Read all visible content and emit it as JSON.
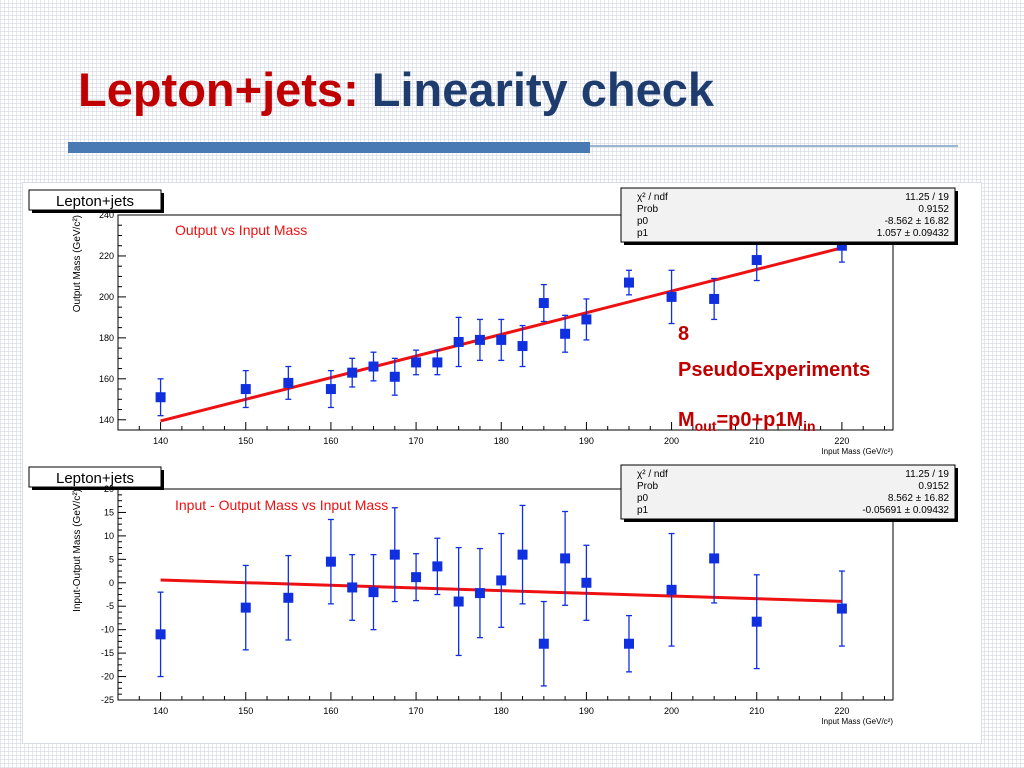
{
  "slide": {
    "title_part1": "Lepton+jets:",
    "title_part2": "Linearity check",
    "title_colors": {
      "part1": "#c00000",
      "part2": "#1f3c6e"
    },
    "rule_color": "#4a7ab4"
  },
  "annotation": {
    "count": "8",
    "label": "PseudoExperiments",
    "formula": {
      "m": "M",
      "out": "out",
      "eq": "=p0+p1M",
      "in": "in"
    },
    "color": "#c00000"
  },
  "chart_data": [
    {
      "type": "scatter",
      "canvas_label": "Lepton+jets",
      "title": "Output vs Input Mass",
      "xlabel": "Input Mass (GeV/c²)",
      "ylabel": "Output Mass (GeV/c²)",
      "xlim": [
        135,
        226
      ],
      "ylim": [
        135,
        240
      ],
      "xticks": [
        140,
        150,
        160,
        170,
        180,
        190,
        200,
        210,
        220
      ],
      "yticks": [
        140,
        160,
        180,
        200,
        220,
        240
      ],
      "series": [
        {
          "marker": "square",
          "color": "#1030e0",
          "x": [
            140,
            150,
            155,
            160,
            162.5,
            165,
            167.5,
            170,
            172.5,
            175,
            177.5,
            180,
            182.5,
            185,
            187.5,
            190,
            195,
            200,
            205,
            210,
            220
          ],
          "y": [
            151,
            155,
            158,
            155,
            163,
            166,
            161,
            168,
            168,
            178,
            179,
            179,
            176,
            197,
            182,
            189,
            207,
            200,
            199,
            218,
            225
          ],
          "yerr": [
            9,
            9,
            8,
            9,
            7,
            7,
            9,
            6,
            6,
            12,
            10,
            10,
            10,
            9,
            9,
            10,
            6,
            13,
            10,
            10,
            8
          ]
        }
      ],
      "fit": {
        "color": "#ee1111",
        "x": [
          140,
          220
        ],
        "stats": [
          {
            "name": "χ² / ndf",
            "value": "11.25 / 19"
          },
          {
            "name": "Prob",
            "value": "0.9152"
          },
          {
            "name": "p0",
            "value": "-8.562 ± 16.82"
          },
          {
            "name": "p1",
            "value": "1.057 ± 0.09432"
          }
        ],
        "p0": -8.562,
        "p1": 1.057
      },
      "grid": false
    },
    {
      "type": "scatter",
      "canvas_label": "Lepton+jets",
      "title": "Input - Output Mass vs Input Mass",
      "xlabel": "Input Mass (GeV/c²)",
      "ylabel": "Input-Output Mass (GeV/c²)",
      "xlim": [
        135,
        226
      ],
      "ylim": [
        -25,
        20
      ],
      "xticks": [
        140,
        150,
        160,
        170,
        180,
        190,
        200,
        210,
        220
      ],
      "yticks": [
        -25,
        -20,
        -15,
        -10,
        -5,
        0,
        5,
        10,
        15,
        20
      ],
      "series": [
        {
          "marker": "square",
          "color": "#1030e0",
          "x": [
            140,
            150,
            155,
            160,
            162.5,
            165,
            167.5,
            170,
            172.5,
            175,
            177.5,
            180,
            182.5,
            185,
            187.5,
            190,
            195,
            200,
            205,
            210,
            220
          ],
          "y": [
            -11,
            -5.3,
            -3.2,
            4.5,
            -1,
            -2,
            6,
            1.2,
            3.5,
            -4,
            -2.2,
            0.5,
            6,
            -13,
            5.2,
            0,
            -13,
            -1.5,
            5.2,
            -8.3,
            -5.5
          ],
          "yerr": [
            9,
            9,
            9,
            9,
            7,
            8,
            10,
            5,
            6,
            11.5,
            9.5,
            10,
            10.5,
            9,
            10,
            8,
            6,
            12,
            9.5,
            10,
            8
          ]
        }
      ],
      "fit": {
        "color": "#ee1111",
        "x": [
          140,
          220
        ],
        "stats": [
          {
            "name": "χ² / ndf",
            "value": "11.25 / 19"
          },
          {
            "name": "Prob",
            "value": "0.9152"
          },
          {
            "name": "p0",
            "value": "8.562 ± 16.82"
          },
          {
            "name": "p1",
            "value": "-0.05691 ± 0.09432"
          }
        ],
        "p0": 8.562,
        "p1": -0.05691
      },
      "grid": false
    }
  ]
}
